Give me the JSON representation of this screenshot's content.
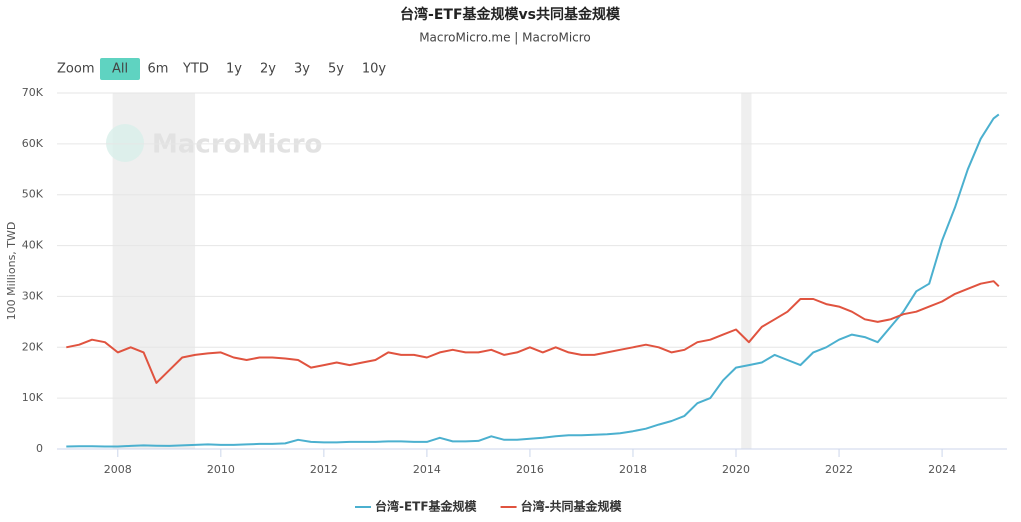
{
  "chart_data": {
    "type": "line",
    "title": "台湾-ETF基金规模vs共同基金规模",
    "subtitle": "MacroMicro.me | MacroMicro",
    "watermark": "MacroMicro",
    "y_label": "100 Millions, TWD",
    "zoom_label": "Zoom",
    "zoom_buttons": [
      "All",
      "6m",
      "YTD",
      "1y",
      "2y",
      "3y",
      "5y",
      "10y"
    ],
    "active_zoom": "All",
    "xlim": [
      2006.82,
      2025.26
    ],
    "xticks": [
      2008,
      2010,
      2012,
      2014,
      2016,
      2018,
      2020,
      2022,
      2024
    ],
    "ylim": [
      0,
      70000
    ],
    "yticks": [
      0,
      {
        "value": 10000,
        "label": "10K"
      },
      {
        "value": 20000,
        "label": "20K"
      },
      {
        "value": 30000,
        "label": "30K"
      },
      {
        "value": 40000,
        "label": "40K"
      },
      {
        "value": 50000,
        "label": "50K"
      },
      {
        "value": 60000,
        "label": "60K"
      },
      {
        "value": 70000,
        "label": "70K"
      }
    ],
    "grid": true,
    "legend": "bottom",
    "shaded_ranges": [
      [
        2007.9,
        2009.5
      ],
      [
        2020.1,
        2020.3
      ]
    ],
    "x": [
      2007,
      2007.25,
      2007.5,
      2007.75,
      2008,
      2008.25,
      2008.5,
      2008.75,
      2009,
      2009.25,
      2009.5,
      2009.75,
      2010,
      2010.25,
      2010.5,
      2010.75,
      2011,
      2011.25,
      2011.5,
      2011.75,
      2012,
      2012.25,
      2012.5,
      2012.75,
      2013,
      2013.25,
      2013.5,
      2013.75,
      2014,
      2014.25,
      2014.5,
      2014.75,
      2015,
      2015.25,
      2015.5,
      2015.75,
      2016,
      2016.25,
      2016.5,
      2016.75,
      2017,
      2017.25,
      2017.5,
      2017.75,
      2018,
      2018.25,
      2018.5,
      2018.75,
      2019,
      2019.25,
      2019.5,
      2019.75,
      2020,
      2020.25,
      2020.5,
      2020.75,
      2021,
      2021.25,
      2021.5,
      2021.75,
      2022,
      2022.25,
      2022.5,
      2022.75,
      2023,
      2023.25,
      2023.5,
      2023.75,
      2024,
      2024.25,
      2024.5,
      2024.75,
      2025,
      2025.1
    ],
    "series": [
      {
        "name": "台湾-ETF基金规模",
        "color": "#4bb0cf",
        "values": [
          500,
          525,
          550,
          500,
          500,
          600,
          700,
          650,
          600,
          700,
          800,
          900,
          800,
          800,
          900,
          1000,
          1000,
          1100,
          1800,
          1400,
          1300,
          1300,
          1400,
          1400,
          1400,
          1500,
          1500,
          1400,
          1400,
          2200,
          1500,
          1500,
          1600,
          2500,
          1800,
          1800,
          2000,
          2200,
          2500,
          2700,
          2700,
          2800,
          2900,
          3100,
          3500,
          4000,
          4800,
          5500,
          6500,
          9000,
          10000,
          13500,
          16000,
          16500,
          17000,
          18500,
          17500,
          16500,
          19000,
          20000,
          21500,
          22500,
          22000,
          21000,
          24000,
          27000,
          31000,
          32500,
          41000,
          47500,
          55000,
          61000,
          65000,
          65800
        ]
      },
      {
        "name": "台湾-共同基金规模",
        "color": "#e0533f",
        "values": [
          20000,
          20500,
          21500,
          21000,
          19000,
          20000,
          19000,
          13000,
          15500,
          18000,
          18500,
          18800,
          19000,
          18000,
          17500,
          18000,
          18000,
          17800,
          17500,
          16000,
          16500,
          17000,
          16500,
          17000,
          17500,
          19000,
          18500,
          18500,
          18000,
          19000,
          19500,
          19000,
          19000,
          19500,
          18500,
          19000,
          20000,
          19000,
          20000,
          19000,
          18500,
          18500,
          19000,
          19500,
          20000,
          20500,
          20000,
          19000,
          19500,
          21000,
          21500,
          22500,
          23500,
          21000,
          24000,
          25500,
          27000,
          29500,
          29500,
          28500,
          28000,
          27000,
          25500,
          25000,
          25500,
          26500,
          27000,
          28000,
          29000,
          30500,
          31500,
          32500,
          33000,
          32000
        ]
      }
    ]
  }
}
